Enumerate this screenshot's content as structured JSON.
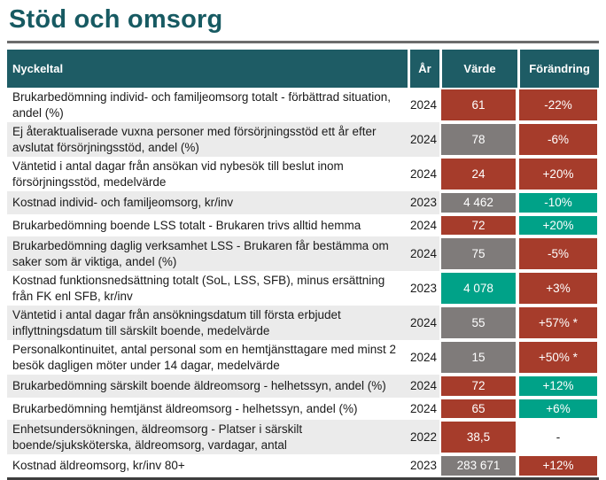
{
  "page": {
    "title": "Stöd och omsorg"
  },
  "colors": {
    "red": "#a63c2b",
    "green": "#00a288",
    "gray": "#7f7b7a",
    "none": "#ffffff",
    "header_teal": "#1e5c65",
    "title_teal": "#175a62",
    "row_alt": "#ebebeb"
  },
  "table": {
    "headers": {
      "nyckeltal": "Nyckeltal",
      "ar": "År",
      "varde": "Värde",
      "forandring": "Förändring"
    },
    "rows": [
      {
        "label": "Brukarbedömning individ- och familjeomsorg totalt - förbättrad situation, andel (%)",
        "ar": "2024",
        "varde": "61",
        "varde_color": "red",
        "forandring": "-22%",
        "forandring_color": "red"
      },
      {
        "label": "Ej återaktualiserade vuxna personer med försörjningsstöd ett år efter avslutat försörjningsstöd, andel (%)",
        "ar": "2024",
        "varde": "78",
        "varde_color": "gray",
        "forandring": "-6%",
        "forandring_color": "red"
      },
      {
        "label": "Väntetid i antal dagar från ansökan vid nybesök till beslut inom försörjningsstöd, medelvärde",
        "ar": "2024",
        "varde": "24",
        "varde_color": "red",
        "forandring": "+20%",
        "forandring_color": "red"
      },
      {
        "label": "Kostnad individ- och familjeomsorg, kr/inv",
        "ar": "2023",
        "varde": "4 462",
        "varde_color": "gray",
        "forandring": "-10%",
        "forandring_color": "green"
      },
      {
        "label": "Brukarbedömning boende LSS totalt - Brukaren trivs alltid hemma",
        "ar": "2024",
        "varde": "72",
        "varde_color": "red",
        "forandring": "+20%",
        "forandring_color": "green"
      },
      {
        "label": "Brukarbedömning daglig verksamhet LSS - Brukaren får bestämma om saker som är viktiga, andel (%)",
        "ar": "2024",
        "varde": "75",
        "varde_color": "gray",
        "forandring": "-5%",
        "forandring_color": "red"
      },
      {
        "label": "Kostnad funktionsnedsättning totalt (SoL, LSS, SFB), minus ersättning från FK enl SFB, kr/inv",
        "ar": "2023",
        "varde": "4 078",
        "varde_color": "green",
        "forandring": "+3%",
        "forandring_color": "red"
      },
      {
        "label": "Väntetid i antal dagar från ansökningsdatum till första erbjudet inflyttningsdatum till särskilt boende, medelvärde",
        "ar": "2024",
        "varde": "55",
        "varde_color": "gray",
        "forandring": "+57% *",
        "forandring_color": "red"
      },
      {
        "label": "Personalkontinuitet, antal personal som en hemtjänsttagare med minst 2 besök dagligen möter under 14 dagar, medelvärde",
        "ar": "2024",
        "varde": "15",
        "varde_color": "gray",
        "forandring": "+50% *",
        "forandring_color": "red"
      },
      {
        "label": "Brukarbedömning särskilt boende äldreomsorg - helhetssyn, andel (%)",
        "ar": "2024",
        "varde": "72",
        "varde_color": "red",
        "forandring": "+12%",
        "forandring_color": "green"
      },
      {
        "label": "Brukarbedömning hemtjänst äldreomsorg - helhetssyn, andel (%)",
        "ar": "2024",
        "varde": "65",
        "varde_color": "red",
        "forandring": "+6%",
        "forandring_color": "green"
      },
      {
        "label": "Enhetsundersökningen, äldreomsorg - Platser i särskilt boende/sjuksköterska, äldreomsorg, vardagar, antal",
        "ar": "2022",
        "varde": "38,5",
        "varde_color": "red",
        "forandring": "-",
        "forandring_color": "none"
      },
      {
        "label": "Kostnad äldreomsorg, kr/inv 80+",
        "ar": "2023",
        "varde": "283 671",
        "varde_color": "gray",
        "forandring": "+12%",
        "forandring_color": "red"
      }
    ]
  }
}
